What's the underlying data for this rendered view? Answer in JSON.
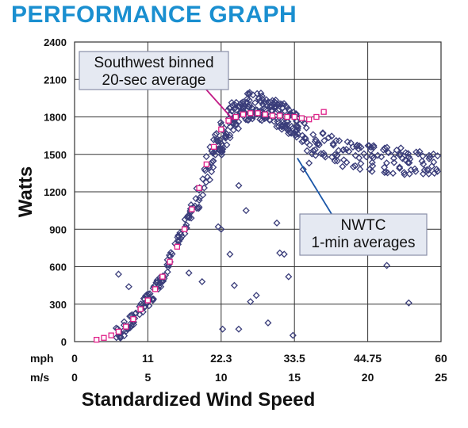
{
  "title": "PERFORMANCE GRAPH",
  "chart_data": {
    "type": "scatter",
    "title": "PERFORMANCE GRAPH",
    "ylabel": "Watts",
    "xlabel": "Standardized Wind Speed",
    "ylim": [
      0,
      2400
    ],
    "xlim": [
      0,
      25
    ],
    "y_ticks": [
      "0",
      "300",
      "600",
      "900",
      "1200",
      "1500",
      "1800",
      "2100",
      "2400"
    ],
    "x_rows": [
      {
        "unit": "mph",
        "ticks": [
          "0",
          "11",
          "22.3",
          "33.5",
          "44.75",
          "60"
        ]
      },
      {
        "unit": "m/s",
        "ticks": [
          "0",
          "5",
          "10",
          "15",
          "20",
          "25"
        ]
      }
    ],
    "grid": true,
    "colors": {
      "title": "#1a8fd0",
      "series1": "#3a3d7a",
      "series2": "#e0228a",
      "annotation_bg": "#e5e9f2",
      "annotation_line": "#1b57a8"
    },
    "annotations": [
      {
        "lines": [
          "Southwest binned",
          "20-sec average"
        ],
        "points_to": [
          10.8,
          1780
        ],
        "color": "#c21a86"
      },
      {
        "lines": [
          "NWTC",
          "1-min averages"
        ],
        "points_to": [
          15.2,
          1470
        ],
        "color": "#1b57a8"
      }
    ],
    "series": [
      {
        "name": "NWTC 1-min averages",
        "marker": "diamond",
        "color": "#3a3d7a",
        "outliers": [
          [
            3.0,
            540
          ],
          [
            3.7,
            440
          ],
          [
            7.8,
            550
          ],
          [
            8.7,
            480
          ],
          [
            9.8,
            920
          ],
          [
            10.0,
            900
          ],
          [
            10.1,
            100
          ],
          [
            10.6,
            700
          ],
          [
            11.2,
            1250
          ],
          [
            11.7,
            1050
          ],
          [
            10.9,
            450
          ],
          [
            11.2,
            100
          ],
          [
            12.0,
            320
          ],
          [
            12.4,
            370
          ],
          [
            13.2,
            150
          ],
          [
            14.0,
            710
          ],
          [
            14.3,
            700
          ],
          [
            14.6,
            520
          ],
          [
            14.9,
            50
          ],
          [
            16.0,
            1430
          ],
          [
            21.3,
            610
          ],
          [
            22.8,
            310
          ],
          [
            15.6,
            1380
          ],
          [
            13.8,
            950
          ]
        ],
        "band": [
          [
            2.8,
            60
          ],
          [
            3.3,
            90
          ],
          [
            3.8,
            150
          ],
          [
            4.3,
            230
          ],
          [
            4.8,
            300
          ],
          [
            5.3,
            380
          ],
          [
            5.8,
            480
          ],
          [
            6.3,
            600
          ],
          [
            6.8,
            720
          ],
          [
            7.3,
            850
          ],
          [
            7.8,
            1000
          ],
          [
            8.3,
            1150
          ],
          [
            8.8,
            1300
          ],
          [
            9.3,
            1450
          ],
          [
            9.8,
            1580
          ],
          [
            10.3,
            1700
          ],
          [
            10.8,
            1790
          ],
          [
            11.3,
            1840
          ],
          [
            11.8,
            1880
          ],
          [
            12.3,
            1900
          ],
          [
            12.8,
            1880
          ],
          [
            13.3,
            1860
          ],
          [
            13.8,
            1830
          ],
          [
            14.3,
            1800
          ],
          [
            14.8,
            1760
          ],
          [
            15.3,
            1700
          ],
          [
            15.8,
            1640
          ],
          [
            16.3,
            1600
          ],
          [
            16.8,
            1570
          ],
          [
            17.3,
            1550
          ],
          [
            17.8,
            1530
          ],
          [
            18.3,
            1510
          ],
          [
            18.8,
            1500
          ],
          [
            19.3,
            1490
          ],
          [
            19.8,
            1480
          ],
          [
            20.3,
            1470
          ],
          [
            20.8,
            1460
          ],
          [
            21.3,
            1460
          ],
          [
            21.8,
            1450
          ],
          [
            22.3,
            1450
          ],
          [
            22.8,
            1440
          ],
          [
            23.3,
            1440
          ],
          [
            23.8,
            1430
          ],
          [
            24.3,
            1430
          ],
          [
            24.8,
            1430
          ]
        ]
      },
      {
        "name": "Southwest binned 20-sec average",
        "marker": "square",
        "color": "#e0228a",
        "x": [
          1.5,
          2.0,
          2.5,
          3.0,
          3.5,
          4.0,
          4.5,
          5.0,
          5.5,
          6.0,
          6.5,
          7.0,
          7.5,
          8.0,
          8.5,
          9.0,
          9.5,
          10.0,
          10.5,
          11.0,
          11.5,
          12.0,
          12.5,
          13.0,
          13.5,
          14.0,
          14.5,
          15.0,
          15.5,
          16.0,
          16.5,
          17.0
        ],
        "y": [
          15,
          30,
          50,
          80,
          120,
          180,
          260,
          330,
          420,
          520,
          640,
          760,
          900,
          1060,
          1230,
          1420,
          1560,
          1700,
          1770,
          1800,
          1820,
          1830,
          1830,
          1820,
          1810,
          1810,
          1800,
          1800,
          1790,
          1780,
          1800,
          1840
        ]
      }
    ]
  }
}
